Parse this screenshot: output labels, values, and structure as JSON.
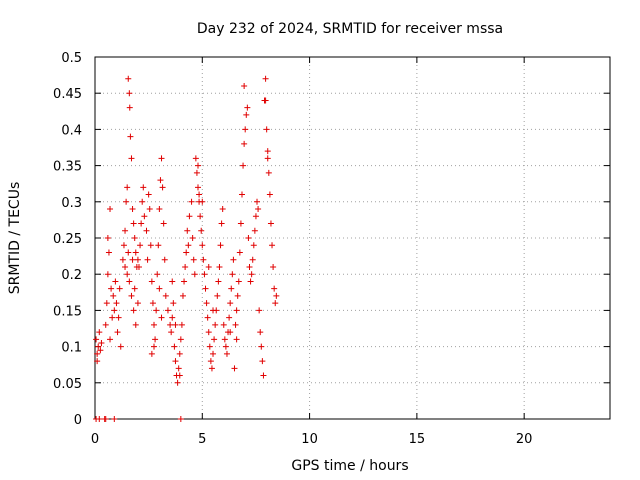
{
  "chart_data": {
    "type": "scatter",
    "title": "Day 232 of 2024, SRMTID for receiver mssa",
    "xlabel": "GPS time / hours",
    "ylabel": "SRMTID / TECUs",
    "xlim": [
      0,
      24
    ],
    "ylim": [
      0,
      0.5
    ],
    "xticks": [
      0,
      5,
      10,
      15,
      20
    ],
    "yticks": [
      0,
      0.05,
      0.1,
      0.15,
      0.2,
      0.25,
      0.3,
      0.35,
      0.4,
      0.45,
      0.5
    ],
    "xtick_labels": [
      "0",
      "5",
      "10",
      "15",
      "20"
    ],
    "ytick_labels": [
      "0",
      "0.05",
      "0.1",
      "0.15",
      "0.2",
      "0.25",
      "0.3",
      "0.35",
      "0.4",
      "0.45",
      "0.5"
    ],
    "grid": true,
    "marker": "plus",
    "color": "#e00000",
    "series": [
      {
        "points": [
          [
            0.05,
            0.0
          ],
          [
            0.2,
            0.0
          ],
          [
            0.45,
            0.0
          ],
          [
            0.5,
            0.0
          ],
          [
            0.9,
            0.0
          ],
          [
            4.0,
            0.0
          ],
          [
            0.1,
            0.08
          ],
          [
            0.15,
            0.1
          ],
          [
            0.2,
            0.12
          ],
          [
            0.25,
            0.095
          ],
          [
            0.3,
            0.105
          ],
          [
            0.1,
            0.09
          ],
          [
            0.05,
            0.11
          ],
          [
            0.5,
            0.13
          ],
          [
            0.55,
            0.16
          ],
          [
            0.6,
            0.2
          ],
          [
            0.65,
            0.23
          ],
          [
            0.7,
            0.29
          ],
          [
            0.75,
            0.18
          ],
          [
            0.8,
            0.14
          ],
          [
            0.85,
            0.17
          ],
          [
            0.9,
            0.15
          ],
          [
            0.95,
            0.19
          ],
          [
            1.0,
            0.16
          ],
          [
            1.05,
            0.12
          ],
          [
            1.1,
            0.14
          ],
          [
            1.15,
            0.18
          ],
          [
            1.2,
            0.1
          ],
          [
            0.7,
            0.11
          ],
          [
            0.6,
            0.25
          ],
          [
            1.3,
            0.22
          ],
          [
            1.35,
            0.24
          ],
          [
            1.4,
            0.26
          ],
          [
            1.45,
            0.3
          ],
          [
            1.5,
            0.32
          ],
          [
            1.55,
            0.47
          ],
          [
            1.6,
            0.45
          ],
          [
            1.62,
            0.43
          ],
          [
            1.65,
            0.39
          ],
          [
            1.7,
            0.36
          ],
          [
            1.75,
            0.29
          ],
          [
            1.8,
            0.27
          ],
          [
            1.85,
            0.25
          ],
          [
            1.9,
            0.23
          ],
          [
            1.95,
            0.21
          ],
          [
            1.5,
            0.2
          ],
          [
            1.6,
            0.19
          ],
          [
            1.7,
            0.17
          ],
          [
            1.8,
            0.15
          ],
          [
            1.9,
            0.13
          ],
          [
            2.0,
            0.16
          ],
          [
            2.05,
            0.21
          ],
          [
            2.1,
            0.24
          ],
          [
            2.15,
            0.27
          ],
          [
            2.2,
            0.3
          ],
          [
            2.25,
            0.32
          ],
          [
            1.4,
            0.21
          ],
          [
            1.55,
            0.23
          ],
          [
            1.75,
            0.22
          ],
          [
            1.85,
            0.18
          ],
          [
            2.0,
            0.22
          ],
          [
            2.3,
            0.28
          ],
          [
            2.4,
            0.26
          ],
          [
            2.5,
            0.31
          ],
          [
            2.55,
            0.29
          ],
          [
            2.6,
            0.24
          ],
          [
            2.65,
            0.19
          ],
          [
            2.7,
            0.16
          ],
          [
            2.75,
            0.13
          ],
          [
            2.8,
            0.11
          ],
          [
            2.85,
            0.15
          ],
          [
            2.9,
            0.2
          ],
          [
            2.95,
            0.24
          ],
          [
            3.0,
            0.29
          ],
          [
            3.05,
            0.33
          ],
          [
            3.1,
            0.36
          ],
          [
            3.15,
            0.32
          ],
          [
            3.2,
            0.27
          ],
          [
            3.25,
            0.22
          ],
          [
            2.45,
            0.22
          ],
          [
            2.65,
            0.09
          ],
          [
            2.75,
            0.1
          ],
          [
            3.0,
            0.18
          ],
          [
            3.1,
            0.14
          ],
          [
            3.3,
            0.17
          ],
          [
            3.4,
            0.15
          ],
          [
            3.5,
            0.13
          ],
          [
            3.55,
            0.12
          ],
          [
            3.6,
            0.14
          ],
          [
            3.65,
            0.16
          ],
          [
            3.7,
            0.1
          ],
          [
            3.75,
            0.08
          ],
          [
            3.8,
            0.06
          ],
          [
            3.85,
            0.05
          ],
          [
            3.9,
            0.07
          ],
          [
            3.95,
            0.09
          ],
          [
            4.0,
            0.11
          ],
          [
            4.05,
            0.13
          ],
          [
            4.1,
            0.17
          ],
          [
            4.15,
            0.19
          ],
          [
            4.2,
            0.21
          ],
          [
            4.25,
            0.23
          ],
          [
            4.3,
            0.26
          ],
          [
            4.35,
            0.24
          ],
          [
            4.4,
            0.28
          ],
          [
            4.5,
            0.3
          ],
          [
            4.55,
            0.25
          ],
          [
            4.6,
            0.22
          ],
          [
            4.65,
            0.2
          ],
          [
            3.6,
            0.19
          ],
          [
            3.75,
            0.13
          ],
          [
            3.95,
            0.06
          ],
          [
            4.7,
            0.36
          ],
          [
            4.75,
            0.34
          ],
          [
            4.8,
            0.32
          ],
          [
            4.85,
            0.3
          ],
          [
            4.9,
            0.28
          ],
          [
            4.95,
            0.26
          ],
          [
            5.0,
            0.24
          ],
          [
            5.05,
            0.22
          ],
          [
            5.1,
            0.2
          ],
          [
            5.15,
            0.18
          ],
          [
            5.2,
            0.16
          ],
          [
            5.25,
            0.14
          ],
          [
            5.3,
            0.12
          ],
          [
            5.35,
            0.1
          ],
          [
            5.4,
            0.08
          ],
          [
            5.45,
            0.07
          ],
          [
            5.5,
            0.09
          ],
          [
            5.55,
            0.11
          ],
          [
            5.6,
            0.13
          ],
          [
            5.65,
            0.15
          ],
          [
            5.7,
            0.17
          ],
          [
            5.75,
            0.19
          ],
          [
            5.8,
            0.21
          ],
          [
            5.85,
            0.24
          ],
          [
            5.9,
            0.27
          ],
          [
            5.95,
            0.29
          ],
          [
            4.8,
            0.35
          ],
          [
            4.85,
            0.31
          ],
          [
            5.0,
            0.3
          ],
          [
            5.3,
            0.21
          ],
          [
            5.5,
            0.15
          ],
          [
            6.0,
            0.13
          ],
          [
            6.05,
            0.11
          ],
          [
            6.1,
            0.1
          ],
          [
            6.15,
            0.09
          ],
          [
            6.2,
            0.12
          ],
          [
            6.25,
            0.14
          ],
          [
            6.3,
            0.16
          ],
          [
            6.35,
            0.18
          ],
          [
            6.4,
            0.2
          ],
          [
            6.45,
            0.22
          ],
          [
            6.5,
            0.07
          ],
          [
            6.55,
            0.13
          ],
          [
            6.6,
            0.15
          ],
          [
            6.65,
            0.17
          ],
          [
            6.7,
            0.19
          ],
          [
            6.75,
            0.23
          ],
          [
            6.8,
            0.27
          ],
          [
            6.85,
            0.31
          ],
          [
            6.9,
            0.35
          ],
          [
            6.95,
            0.38
          ],
          [
            7.0,
            0.4
          ],
          [
            7.05,
            0.42
          ],
          [
            7.1,
            0.43
          ],
          [
            6.95,
            0.46
          ],
          [
            7.15,
            0.25
          ],
          [
            7.2,
            0.21
          ],
          [
            6.3,
            0.12
          ],
          [
            6.6,
            0.11
          ],
          [
            7.25,
            0.19
          ],
          [
            7.3,
            0.2
          ],
          [
            7.35,
            0.22
          ],
          [
            7.4,
            0.24
          ],
          [
            7.45,
            0.26
          ],
          [
            7.5,
            0.28
          ],
          [
            7.55,
            0.3
          ],
          [
            7.6,
            0.29
          ],
          [
            7.65,
            0.15
          ],
          [
            7.7,
            0.12
          ],
          [
            7.75,
            0.1
          ],
          [
            7.8,
            0.08
          ],
          [
            7.85,
            0.06
          ],
          [
            7.9,
            0.44
          ],
          [
            7.95,
            0.47
          ],
          [
            8.0,
            0.4
          ],
          [
            8.05,
            0.37
          ],
          [
            8.1,
            0.34
          ],
          [
            8.15,
            0.31
          ],
          [
            8.2,
            0.27
          ],
          [
            8.25,
            0.24
          ],
          [
            8.3,
            0.21
          ],
          [
            8.35,
            0.18
          ],
          [
            8.4,
            0.16
          ],
          [
            8.45,
            0.17
          ],
          [
            7.95,
            0.44
          ],
          [
            8.05,
            0.36
          ]
        ]
      }
    ]
  }
}
